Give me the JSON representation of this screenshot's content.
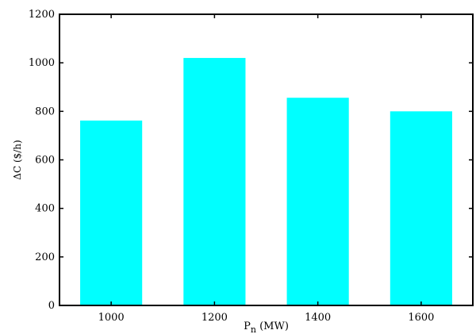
{
  "chart_data": {
    "type": "bar",
    "categories": [
      "1000",
      "1200",
      "1400",
      "1600"
    ],
    "values": [
      762,
      1020,
      856,
      800
    ],
    "xlabel": {
      "main": "P",
      "sub": "n",
      "unit": " (MW)"
    },
    "ylabel": "ΔC ($/h)",
    "ylim": [
      0,
      1200
    ],
    "yticks": [
      0,
      200,
      400,
      600,
      800,
      1000,
      1200
    ],
    "grid": false,
    "legend": "none",
    "bar_color": "#00ffff",
    "axis_color": "#000000"
  }
}
